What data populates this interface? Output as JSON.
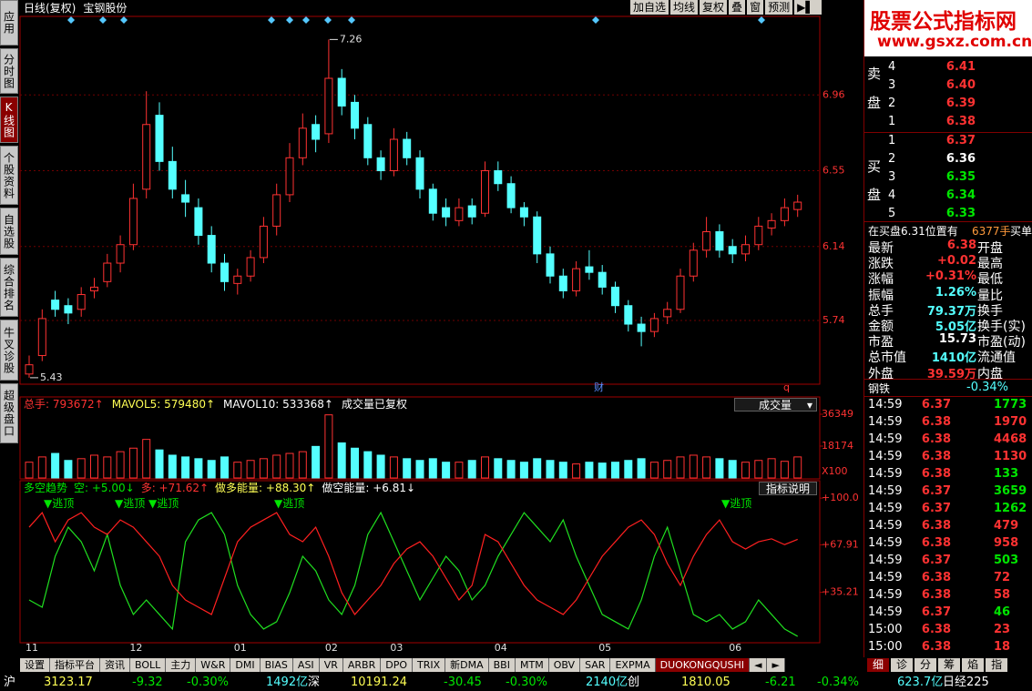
{
  "toolbar": {
    "title": "日线(复权)",
    "stock": "宝钢股份",
    "buttons": [
      "加自选",
      "均线",
      "复权",
      "叠",
      "窗",
      "预测"
    ]
  },
  "side_tabs": [
    "应用",
    "分时图",
    "K线图",
    "个股资料",
    "自选股",
    "综合排名",
    "牛叉诊股",
    "超级盘口"
  ],
  "chart_data": {
    "type": "candlestick",
    "categories": [
      "11",
      null,
      null,
      null,
      null,
      null,
      null,
      null,
      "12",
      null,
      null,
      null,
      null,
      null,
      null,
      null,
      "01",
      null,
      null,
      null,
      null,
      null,
      null,
      "02",
      null,
      null,
      null,
      null,
      "03",
      null,
      null,
      null,
      null,
      null,
      null,
      null,
      "04",
      null,
      null,
      null,
      null,
      null,
      null,
      null,
      "05",
      null,
      null,
      null,
      null,
      null,
      null,
      null,
      null,
      null,
      "06",
      null,
      null,
      null,
      null,
      null
    ],
    "candles": [
      [
        5.45,
        5.55,
        5.43,
        5.5
      ],
      [
        5.55,
        5.8,
        5.52,
        5.75
      ],
      [
        5.85,
        5.9,
        5.76,
        5.8
      ],
      [
        5.82,
        5.86,
        5.72,
        5.78
      ],
      [
        5.8,
        5.92,
        5.76,
        5.88
      ],
      [
        5.9,
        5.97,
        5.86,
        5.92
      ],
      [
        5.95,
        6.1,
        5.92,
        6.05
      ],
      [
        6.05,
        6.2,
        6.0,
        6.15
      ],
      [
        6.15,
        6.48,
        6.12,
        6.4
      ],
      [
        6.45,
        6.98,
        6.4,
        6.8
      ],
      [
        6.85,
        6.92,
        6.55,
        6.6
      ],
      [
        6.6,
        6.68,
        6.4,
        6.45
      ],
      [
        6.42,
        6.5,
        6.3,
        6.38
      ],
      [
        6.35,
        6.4,
        6.15,
        6.2
      ],
      [
        6.2,
        6.25,
        6.0,
        6.05
      ],
      [
        6.05,
        6.1,
        5.9,
        5.95
      ],
      [
        5.94,
        6.02,
        5.88,
        5.98
      ],
      [
        5.98,
        6.12,
        5.95,
        6.08
      ],
      [
        6.08,
        6.3,
        6.05,
        6.25
      ],
      [
        6.25,
        6.48,
        6.2,
        6.42
      ],
      [
        6.42,
        6.7,
        6.38,
        6.62
      ],
      [
        6.62,
        6.86,
        6.58,
        6.78
      ],
      [
        6.8,
        6.85,
        6.65,
        6.72
      ],
      [
        6.75,
        7.26,
        6.7,
        7.05
      ],
      [
        7.05,
        7.1,
        6.85,
        6.9
      ],
      [
        6.92,
        6.96,
        6.72,
        6.78
      ],
      [
        6.8,
        6.84,
        6.58,
        6.62
      ],
      [
        6.62,
        6.66,
        6.5,
        6.55
      ],
      [
        6.55,
        6.78,
        6.52,
        6.72
      ],
      [
        6.72,
        6.76,
        6.58,
        6.62
      ],
      [
        6.62,
        6.66,
        6.4,
        6.45
      ],
      [
        6.45,
        6.48,
        6.28,
        6.32
      ],
      [
        6.35,
        6.4,
        6.25,
        6.3
      ],
      [
        6.28,
        6.4,
        6.25,
        6.35
      ],
      [
        6.36,
        6.4,
        6.26,
        6.3
      ],
      [
        6.32,
        6.6,
        6.3,
        6.55
      ],
      [
        6.55,
        6.6,
        6.44,
        6.48
      ],
      [
        6.48,
        6.52,
        6.32,
        6.35
      ],
      [
        6.35,
        6.38,
        6.25,
        6.3
      ],
      [
        6.3,
        6.33,
        6.05,
        6.1
      ],
      [
        6.1,
        6.14,
        5.94,
        5.98
      ],
      [
        5.98,
        6.02,
        5.86,
        5.9
      ],
      [
        5.9,
        6.06,
        5.87,
        6.02
      ],
      [
        6.03,
        6.12,
        5.96,
        6.0
      ],
      [
        6.0,
        6.04,
        5.88,
        5.92
      ],
      [
        5.92,
        5.95,
        5.78,
        5.82
      ],
      [
        5.82,
        5.85,
        5.68,
        5.72
      ],
      [
        5.72,
        5.76,
        5.6,
        5.68
      ],
      [
        5.68,
        5.78,
        5.65,
        5.75
      ],
      [
        5.76,
        5.84,
        5.72,
        5.8
      ],
      [
        5.8,
        6.02,
        5.78,
        5.98
      ],
      [
        5.98,
        6.16,
        5.95,
        6.12
      ],
      [
        6.12,
        6.3,
        6.08,
        6.22
      ],
      [
        6.22,
        6.26,
        6.08,
        6.12
      ],
      [
        6.14,
        6.18,
        6.05,
        6.1
      ],
      [
        6.1,
        6.2,
        6.06,
        6.15
      ],
      [
        6.15,
        6.3,
        6.12,
        6.25
      ],
      [
        6.24,
        6.32,
        6.2,
        6.28
      ],
      [
        6.28,
        6.4,
        6.25,
        6.35
      ],
      [
        6.34,
        6.42,
        6.3,
        6.38
      ]
    ],
    "ylim": [
      5.395,
      7.385
    ],
    "yticks": [
      5.74,
      6.14,
      6.55,
      6.96
    ],
    "grid": true,
    "up_color": "#ff3232",
    "down_color": "#54ffff",
    "annotations": [
      "7.26",
      "5.43"
    ],
    "markers": [
      "财",
      "q"
    ]
  },
  "volume": {
    "header": [
      "总手: 793672↑",
      "MAVOL5: 579480↑",
      "MAVOL10: 533368↑",
      "成交量已复权"
    ],
    "dropdown": "成交量",
    "values": [
      9000,
      12000,
      14000,
      10000,
      11000,
      13000,
      12000,
      15000,
      17000,
      22000,
      16000,
      13000,
      12000,
      11000,
      10000,
      12000,
      9000,
      10000,
      11000,
      13000,
      14000,
      15000,
      18000,
      36000,
      20000,
      17000,
      15000,
      13000,
      12000,
      11000,
      10000,
      11000,
      9000,
      9000,
      10000,
      12000,
      11000,
      10000,
      9000,
      11000,
      10000,
      9000,
      8000,
      9000,
      8500,
      9000,
      10000,
      11000,
      9000,
      10000,
      12000,
      13000,
      12000,
      11000,
      10000,
      9000,
      10000,
      11000,
      9500,
      12000
    ],
    "ylim": [
      0,
      44138
    ],
    "yticks": [
      18174,
      36349
    ],
    "unit": "X100"
  },
  "indicator": {
    "header": [
      "多空趋势",
      "空: +5.00↓",
      "多: +71.62↑",
      "做多能量: +88.30↑",
      "做空能量: +6.81↓"
    ],
    "button": "指标说明",
    "signals": [
      "▼逃顶",
      "▼逃顶",
      "▼逃顶",
      "▼逃顶",
      "▼逃顶"
    ],
    "ylim": [
      1.2,
      110.7
    ],
    "yticks": [
      {
        "value": 35.21,
        "label": "+35.21"
      },
      {
        "value": 67.91,
        "label": "+67.91"
      },
      {
        "value": 100,
        "label": "+100.0"
      }
    ],
    "series": [
      {
        "color": "#20e020",
        "values": [
          30,
          25,
          60,
          80,
          70,
          50,
          75,
          40,
          20,
          30,
          20,
          10,
          70,
          85,
          90,
          75,
          40,
          20,
          10,
          15,
          35,
          60,
          50,
          30,
          20,
          40,
          75,
          90,
          70,
          50,
          30,
          45,
          60,
          50,
          30,
          40,
          60,
          75,
          90,
          80,
          70,
          85,
          60,
          40,
          20,
          15,
          10,
          30,
          60,
          80,
          50,
          20,
          15,
          20,
          10,
          15,
          30,
          20,
          10,
          5
        ]
      },
      {
        "color": "#ff2020",
        "values": [
          80,
          90,
          70,
          85,
          90,
          80,
          75,
          85,
          80,
          70,
          60,
          40,
          30,
          25,
          20,
          45,
          70,
          80,
          85,
          90,
          75,
          70,
          80,
          60,
          35,
          20,
          30,
          40,
          55,
          65,
          70,
          60,
          45,
          30,
          40,
          75,
          70,
          55,
          40,
          30,
          25,
          20,
          30,
          45,
          60,
          70,
          80,
          85,
          75,
          55,
          40,
          60,
          75,
          85,
          70,
          65,
          70,
          72,
          68,
          71.62
        ]
      }
    ]
  },
  "bottom_tabs": [
    "设置",
    "指标平台",
    "资讯",
    "BOLL",
    "主力",
    "W&R",
    "DMI",
    "BIAS",
    "ASI",
    "VR",
    "ARBR",
    "DPO",
    "TRIX",
    "新DMA",
    "BBI",
    "MTM",
    "OBV",
    "SAR",
    "EXPMA",
    "DUOKONGQUSHI"
  ],
  "status_bar": [
    "沪",
    "3123.17",
    "-9.32",
    "-0.30%",
    "1492亿",
    "深",
    "10191.24",
    "-30.45",
    "-0.30%",
    "2140亿",
    "创",
    "1810.05",
    "-6.21",
    "-0.34%",
    "623.7亿",
    "日经225"
  ],
  "logo": {
    "title": "股票公式指标网",
    "url": "www.gsxz.com.cn"
  },
  "order_book": {
    "sell_label": [
      "卖",
      "盘"
    ],
    "buy_label": [
      "买",
      "盘"
    ],
    "sell": [
      [
        "4",
        "6.41"
      ],
      [
        "3",
        "6.40"
      ],
      [
        "2",
        "6.39"
      ],
      [
        "1",
        "6.38"
      ]
    ],
    "buy": [
      [
        "1",
        "6.37"
      ],
      [
        "2",
        "6.36"
      ],
      [
        "3",
        "6.35"
      ],
      [
        "4",
        "6.34"
      ],
      [
        "5",
        "6.33"
      ]
    ],
    "bid_note": [
      "在买盘6.31位置有",
      "6377手",
      "买单"
    ]
  },
  "stats": [
    [
      "最新",
      "6.38",
      "开盘"
    ],
    [
      "涨跌",
      "+0.02",
      "最高"
    ],
    [
      "涨幅",
      "+0.31%",
      "最低"
    ],
    [
      "振幅",
      "1.26%",
      "量比"
    ],
    [
      "总手",
      "79.37万",
      "换手"
    ],
    [
      "金额",
      "5.05亿",
      "换手(实)"
    ],
    [
      "市盈",
      "15.73",
      "市盈(动)"
    ],
    [
      "总市值",
      "1410亿",
      "流通值"
    ],
    [
      "外盘",
      "39.59万",
      "内盘"
    ]
  ],
  "industry": [
    "钢铁",
    "-0.34%"
  ],
  "ticks": [
    [
      "14:59",
      "6.37",
      "1773"
    ],
    [
      "14:59",
      "6.38",
      "1970"
    ],
    [
      "14:59",
      "6.38",
      "4468"
    ],
    [
      "14:59",
      "6.38",
      "1130"
    ],
    [
      "14:59",
      "6.38",
      "133"
    ],
    [
      "14:59",
      "6.37",
      "3659"
    ],
    [
      "14:59",
      "6.37",
      "1262"
    ],
    [
      "14:59",
      "6.38",
      "479"
    ],
    [
      "14:59",
      "6.38",
      "958"
    ],
    [
      "14:59",
      "6.37",
      "503"
    ],
    [
      "14:59",
      "6.38",
      "72"
    ],
    [
      "14:59",
      "6.38",
      "58"
    ],
    [
      "14:59",
      "6.37",
      "46"
    ],
    [
      "15:00",
      "6.38",
      "23"
    ],
    [
      "15:00",
      "6.38",
      "18"
    ]
  ],
  "right_tabs": [
    "细",
    "诊",
    "分",
    "筹",
    "焰",
    "指"
  ]
}
